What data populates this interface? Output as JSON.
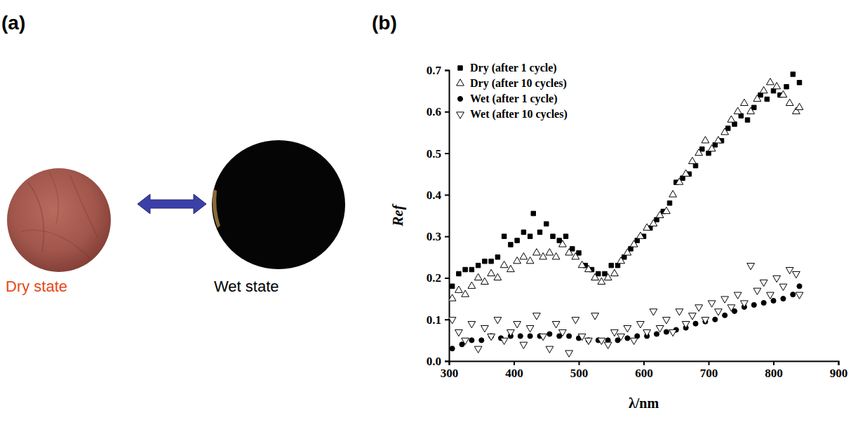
{
  "panel_labels": [
    "(a)",
    "(b)"
  ],
  "photo": {
    "labels": [
      "Dry state",
      "Wet state"
    ]
  },
  "chart_data": {
    "type": "scatter",
    "xlabel": "λ/nm",
    "ylabel": "Ref",
    "xlim": [
      300,
      900
    ],
    "xticks": [
      300,
      400,
      500,
      600,
      700,
      800,
      900
    ],
    "ylim": [
      0,
      0.7
    ],
    "yticks": [
      {
        "value": 0,
        "label": "0.0"
      },
      0.1,
      0.2,
      0.3,
      0.4,
      0.5,
      0.6,
      0.7
    ],
    "legend": "top-left",
    "series": [
      {
        "name": "Dry (after 1 cycle)",
        "color": "#000000",
        "marker": "filled-square",
        "x": [
          305,
          315,
          325,
          335,
          345,
          355,
          365,
          375,
          385,
          395,
          405,
          415,
          425,
          430,
          440,
          450,
          460,
          470,
          480,
          490,
          500,
          510,
          520,
          530,
          540,
          550,
          560,
          570,
          580,
          590,
          600,
          610,
          620,
          630,
          640,
          650,
          660,
          670,
          680,
          690,
          700,
          710,
          720,
          730,
          740,
          750,
          760,
          770,
          780,
          790,
          800,
          810,
          820,
          830,
          840
        ],
        "values": [
          0.18,
          0.21,
          0.22,
          0.22,
          0.23,
          0.24,
          0.24,
          0.25,
          0.3,
          0.28,
          0.29,
          0.31,
          0.3,
          0.355,
          0.31,
          0.33,
          0.3,
          0.29,
          0.3,
          0.27,
          0.26,
          0.23,
          0.22,
          0.21,
          0.21,
          0.23,
          0.23,
          0.25,
          0.27,
          0.29,
          0.3,
          0.32,
          0.34,
          0.36,
          0.38,
          0.43,
          0.44,
          0.45,
          0.47,
          0.51,
          0.5,
          0.52,
          0.53,
          0.56,
          0.57,
          0.59,
          0.58,
          0.61,
          0.64,
          0.63,
          0.65,
          0.64,
          0.66,
          0.69,
          0.67
        ]
      },
      {
        "name": "Dry (after 10 cycles)",
        "color": "#000000",
        "marker": "open-triangle-up",
        "x": [
          305,
          315,
          325,
          335,
          345,
          355,
          365,
          375,
          385,
          395,
          405,
          415,
          425,
          435,
          445,
          455,
          465,
          475,
          485,
          495,
          505,
          515,
          525,
          535,
          545,
          555,
          565,
          575,
          585,
          595,
          605,
          615,
          625,
          635,
          645,
          655,
          665,
          675,
          685,
          695,
          705,
          715,
          725,
          735,
          745,
          755,
          765,
          775,
          785,
          795,
          805,
          815,
          825,
          835,
          840
        ],
        "values": [
          0.15,
          0.17,
          0.16,
          0.18,
          0.2,
          0.19,
          0.21,
          0.2,
          0.23,
          0.22,
          0.24,
          0.25,
          0.24,
          0.26,
          0.25,
          0.26,
          0.25,
          0.28,
          0.26,
          0.25,
          0.23,
          0.22,
          0.2,
          0.19,
          0.2,
          0.21,
          0.24,
          0.26,
          0.28,
          0.3,
          0.32,
          0.33,
          0.35,
          0.36,
          0.4,
          0.43,
          0.45,
          0.48,
          0.5,
          0.53,
          0.51,
          0.53,
          0.55,
          0.58,
          0.6,
          0.62,
          0.6,
          0.63,
          0.65,
          0.67,
          0.66,
          0.64,
          0.62,
          0.6,
          0.61
        ]
      },
      {
        "name": "Wet (after 1 cycle)",
        "color": "#000000",
        "marker": "filled-circle",
        "x": [
          305,
          320,
          335,
          350,
          365,
          380,
          395,
          410,
          425,
          440,
          455,
          470,
          485,
          500,
          515,
          530,
          545,
          560,
          575,
          590,
          605,
          620,
          635,
          650,
          665,
          680,
          695,
          710,
          725,
          740,
          755,
          770,
          785,
          800,
          815,
          830,
          840
        ],
        "values": [
          0.03,
          0.04,
          0.05,
          0.05,
          0.06,
          0.055,
          0.06,
          0.06,
          0.06,
          0.06,
          0.065,
          0.06,
          0.06,
          0.055,
          0.05,
          0.05,
          0.05,
          0.05,
          0.055,
          0.06,
          0.06,
          0.065,
          0.07,
          0.075,
          0.08,
          0.09,
          0.095,
          0.1,
          0.11,
          0.12,
          0.13,
          0.135,
          0.14,
          0.145,
          0.15,
          0.16,
          0.18
        ]
      },
      {
        "name": "Wet (after 10 cycles)",
        "color": "#000000",
        "marker": "open-triangle-down",
        "x": [
          305,
          315,
          325,
          335,
          345,
          355,
          365,
          375,
          385,
          395,
          405,
          415,
          425,
          435,
          445,
          455,
          465,
          475,
          485,
          495,
          505,
          515,
          525,
          535,
          545,
          555,
          565,
          575,
          585,
          595,
          605,
          615,
          625,
          635,
          645,
          655,
          665,
          675,
          685,
          695,
          705,
          715,
          725,
          735,
          745,
          755,
          765,
          775,
          785,
          795,
          805,
          815,
          825,
          835,
          840
        ],
        "values": [
          0.1,
          0.07,
          0.05,
          0.09,
          0.03,
          0.08,
          0.06,
          0.1,
          0.05,
          0.07,
          0.09,
          0.04,
          0.08,
          0.11,
          0.06,
          0.03,
          0.09,
          0.07,
          0.02,
          0.1,
          0.06,
          0.05,
          0.11,
          0.05,
          0.04,
          0.07,
          0.06,
          0.08,
          0.05,
          0.09,
          0.07,
          0.12,
          0.08,
          0.1,
          0.07,
          0.12,
          0.09,
          0.11,
          0.13,
          0.1,
          0.14,
          0.12,
          0.15,
          0.13,
          0.16,
          0.14,
          0.23,
          0.17,
          0.19,
          0.16,
          0.2,
          0.18,
          0.22,
          0.21,
          0.16
        ]
      }
    ]
  }
}
